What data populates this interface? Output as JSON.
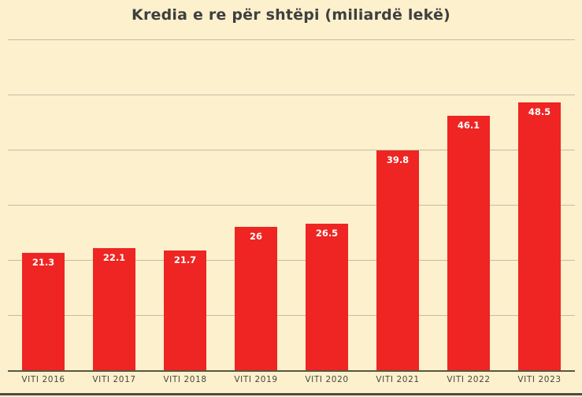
{
  "colors": {
    "background": "#FCF0CD",
    "bar": "#EE2522",
    "bar_label": "#FFFFFF",
    "title": "#3F3F3F",
    "axis_label": "#47463E",
    "gridline": "#C4BCA4",
    "baseline": "#5A5641",
    "bottom_border": "#4E4B40"
  },
  "chart_data": {
    "type": "bar",
    "title": "Kredia e re për shtëpi (miliardë lekë)",
    "categories": [
      "VITI 2016",
      "VITI 2017",
      "VITI 2018",
      "VITI 2019",
      "VITI 2020",
      "VITI 2021",
      "VITI 2022",
      "VITI 2023"
    ],
    "values": [
      21.3,
      22.1,
      21.7,
      26,
      26.5,
      39.8,
      46.1,
      48.5
    ],
    "value_labels": [
      "21.3",
      "22.1",
      "21.7",
      "26",
      "26.5",
      "39.8",
      "46.1",
      "48.5"
    ],
    "xlabel": "",
    "ylabel": "",
    "ylim": [
      0,
      60
    ],
    "gridline_step": 10,
    "grid": true,
    "legend": false,
    "y_tick_labels_visible": false,
    "value_label_position": "inside-top"
  }
}
